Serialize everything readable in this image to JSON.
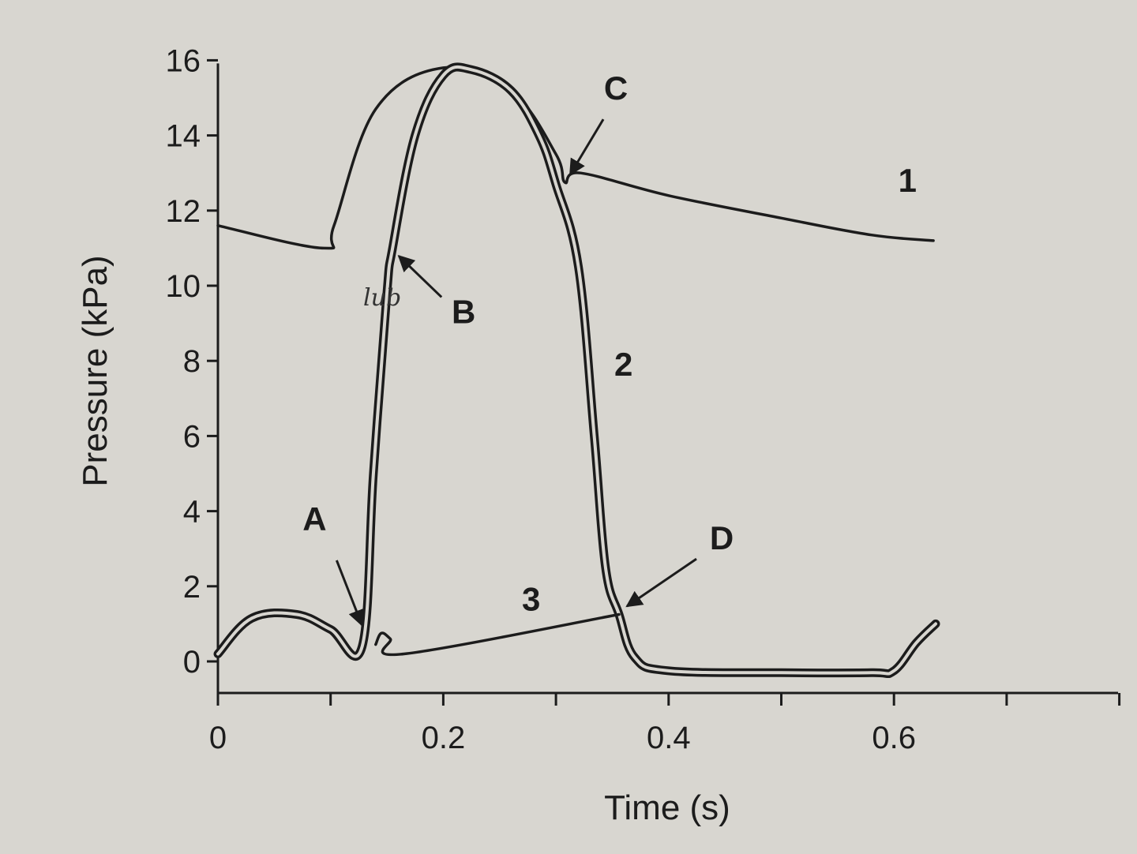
{
  "chart_data": {
    "type": "line",
    "title": "",
    "xlabel": "Time (s)",
    "ylabel": "Pressure (kPa)",
    "xlim": [
      0,
      0.8
    ],
    "ylim": [
      -0.8,
      16
    ],
    "x_ticks": [
      0,
      0.1,
      0.2,
      0.3,
      0.4,
      0.5,
      0.6,
      0.7,
      0.8
    ],
    "x_tick_labels": [
      {
        "x": 0,
        "label": "0"
      },
      {
        "x": 0.2,
        "label": "0.2"
      },
      {
        "x": 0.4,
        "label": "0.4"
      },
      {
        "x": 0.6,
        "label": "0.6"
      }
    ],
    "y_ticks": [
      0,
      2,
      4,
      6,
      8,
      10,
      12,
      14,
      16
    ],
    "y_tick_labels": [
      "0",
      "2",
      "4",
      "6",
      "8",
      "10",
      "12",
      "14",
      "16"
    ],
    "grid": false,
    "series": [
      {
        "name": "1",
        "line_style": "single",
        "points": [
          [
            0.0,
            11.6
          ],
          [
            0.094,
            11.0
          ],
          [
            0.103,
            11.6
          ],
          [
            0.14,
            14.7
          ],
          [
            0.2,
            15.8
          ],
          [
            0.26,
            15.2
          ],
          [
            0.3,
            13.5
          ],
          [
            0.308,
            12.75
          ],
          [
            0.322,
            13.0
          ],
          [
            0.4,
            12.4
          ],
          [
            0.5,
            11.8
          ],
          [
            0.58,
            11.35
          ],
          [
            0.635,
            11.2
          ]
        ]
      },
      {
        "name": "2",
        "line_style": "double",
        "points": [
          [
            0.0,
            0.2
          ],
          [
            0.03,
            1.15
          ],
          [
            0.07,
            1.25
          ],
          [
            0.1,
            0.85
          ],
          [
            0.128,
            0.4
          ],
          [
            0.138,
            5.0
          ],
          [
            0.15,
            9.8
          ],
          [
            0.155,
            11.0
          ],
          [
            0.175,
            14.0
          ],
          [
            0.2,
            15.6
          ],
          [
            0.225,
            15.75
          ],
          [
            0.26,
            15.2
          ],
          [
            0.285,
            14.0
          ],
          [
            0.3,
            12.7
          ],
          [
            0.32,
            10.5
          ],
          [
            0.334,
            6.0
          ],
          [
            0.344,
            2.5
          ],
          [
            0.356,
            1.25
          ],
          [
            0.37,
            0.1
          ],
          [
            0.4,
            -0.25
          ],
          [
            0.5,
            -0.3
          ],
          [
            0.58,
            -0.3
          ],
          [
            0.6,
            -0.25
          ],
          [
            0.62,
            0.5
          ],
          [
            0.637,
            1.0
          ]
        ]
      },
      {
        "name": "3",
        "line_style": "single",
        "points": [
          [
            0.14,
            0.45
          ],
          [
            0.145,
            0.75
          ],
          [
            0.153,
            0.6
          ],
          [
            0.165,
            0.2
          ],
          [
            0.356,
            1.25
          ]
        ]
      }
    ],
    "annotations": [
      {
        "label": "A",
        "x": 0.132,
        "y": 0.8
      },
      {
        "label": "B",
        "x": 0.155,
        "y": 11.0
      },
      {
        "label": "C",
        "x": 0.307,
        "y": 12.75
      },
      {
        "label": "D",
        "x": 0.356,
        "y": 1.3
      }
    ],
    "handwritten_note": {
      "text": "lub",
      "x": 0.143,
      "y": 9.6
    }
  }
}
